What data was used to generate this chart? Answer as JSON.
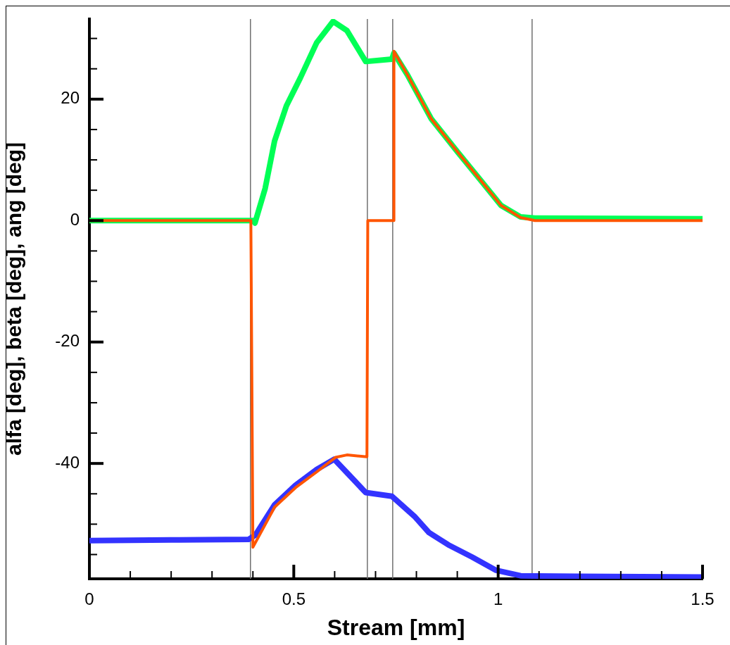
{
  "chart_data": {
    "type": "line",
    "xlabel": "Stream [mm]",
    "ylabel": "alfa [deg], beta [deg], ang [deg]",
    "xlim": [
      0,
      1.5
    ],
    "ylim": [
      -59,
      33.2
    ],
    "xticks": [
      0,
      {
        "value": 0.1,
        "label": null
      },
      {
        "value": 0.2,
        "label": null
      },
      {
        "value": 0.3,
        "label": null
      },
      {
        "value": 0.4,
        "label": null
      },
      0.5,
      {
        "value": 0.6,
        "label": null
      },
      {
        "value": 0.7,
        "label": null
      },
      {
        "value": 0.8,
        "label": null
      },
      {
        "value": 0.9,
        "label": null
      },
      1,
      {
        "value": 1.1,
        "label": null
      },
      {
        "value": 1.2,
        "label": null
      },
      {
        "value": 1.3,
        "label": null
      },
      {
        "value": 1.4,
        "label": null
      },
      1.5
    ],
    "yticks": [
      {
        "value": -55,
        "label": null
      },
      {
        "value": -50,
        "label": null
      },
      {
        "value": -45,
        "label": null
      },
      -40,
      {
        "value": -35,
        "label": null
      },
      {
        "value": -30,
        "label": null
      },
      {
        "value": -25,
        "label": null
      },
      -20,
      {
        "value": -15,
        "label": null
      },
      {
        "value": -10,
        "label": null
      },
      {
        "value": -5,
        "label": null
      },
      0,
      {
        "value": 5,
        "label": null
      },
      {
        "value": 10,
        "label": null
      },
      {
        "value": 15,
        "label": null
      },
      20,
      {
        "value": 25,
        "label": null
      },
      {
        "value": 30,
        "label": null
      }
    ],
    "grid": false,
    "legend": false,
    "marker": "none",
    "line_style": "solid",
    "ref_lines": [
      {
        "axis": "x",
        "value": 0.394,
        "color": "#707070"
      },
      {
        "axis": "x",
        "value": 0.68,
        "color": "#707070"
      },
      {
        "axis": "x",
        "value": 0.742,
        "color": "#707070"
      },
      {
        "axis": "x",
        "value": 1.083,
        "color": "#707070"
      }
    ],
    "series": [
      {
        "color": "#3333ff",
        "x": [
          0,
          0.2,
          0.39,
          0.406,
          0.453,
          0.504,
          0.556,
          0.599,
          0.676,
          0.74,
          0.795,
          0.831,
          0.878,
          0.936,
          0.995,
          1.055,
          1.2,
          1.5
        ],
        "values": [
          -52.7,
          -52.6,
          -52.5,
          -51.8,
          -46.8,
          -43.6,
          -41,
          -39.3,
          -44.8,
          -45.4,
          -48.7,
          -51.4,
          -53.4,
          -55.4,
          -57.6,
          -58.5,
          -58.6,
          -58.7
        ]
      },
      {
        "color": "#00ff55",
        "x": [
          0,
          0.2,
          0.4,
          0.405,
          0.43,
          0.453,
          0.482,
          0.516,
          0.556,
          0.596,
          0.63,
          0.676,
          0.74,
          0.745,
          0.778,
          0.836,
          0.902,
          0.954,
          1.007,
          1.055,
          1.09,
          1.5
        ],
        "values": [
          0,
          0,
          0,
          -0.4,
          5.3,
          13.1,
          18.9,
          23.5,
          29.3,
          32.8,
          31.3,
          26.2,
          26.6,
          27.6,
          24,
          16.8,
          11.2,
          6.9,
          2.5,
          0.6,
          0.4,
          0.3
        ]
      },
      {
        "color": "#ff5500",
        "x": [
          0,
          0.395,
          0.4,
          0.453,
          0.504,
          0.556,
          0.602,
          0.63,
          0.679,
          0.681,
          0.74,
          0.744,
          0.745,
          0.778,
          0.836,
          0.902,
          0.954,
          1.007,
          1.055,
          1.09,
          1.5
        ],
        "values": [
          0,
          0,
          -53.8,
          -47.2,
          -44,
          -41.4,
          -39,
          -38.6,
          -38.9,
          0,
          0,
          0,
          27.9,
          24,
          16.8,
          11.2,
          6.9,
          2.5,
          0.5,
          0,
          0
        ]
      }
    ]
  }
}
